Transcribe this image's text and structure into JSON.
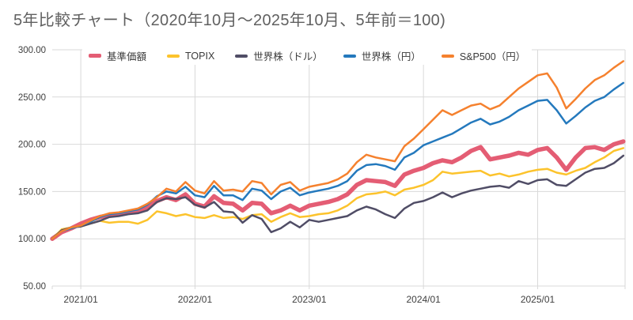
{
  "title": "5年比較チャート（2020年10月～2025年10月、5年前＝100)",
  "colors": {
    "background": "#ffffff",
    "grid": "#d9d9d9",
    "axis_text": "#3f3f3f",
    "title_text": "#606060"
  },
  "chart_data": {
    "type": "line",
    "title": "5年比較チャート（2020年10月～2025年10月、5年前＝100)",
    "x_start": "2020/10",
    "x_end": "2025/10",
    "x_frequency": "monthly",
    "base_index": 100,
    "ylim": [
      50,
      300
    ],
    "grid": true,
    "legend_position": "top",
    "y_tick_labels": [
      "300.00",
      "250.00",
      "200.00",
      "150.00",
      "100.00",
      "50.00"
    ],
    "y_ticks": [
      300,
      250,
      200,
      150,
      100,
      50
    ],
    "x_tick_labels": [
      "2021/01",
      "2022/01",
      "2023/01",
      "2024/01",
      "2025/01"
    ],
    "x_tick_month_indices": [
      3,
      15,
      27,
      39,
      51
    ],
    "series": [
      {
        "name": "基準価額",
        "color": "#e45d74",
        "width": 5.5,
        "values": [
          100,
          107,
          111,
          116,
          120,
          123,
          125,
          126,
          128,
          129,
          133,
          140,
          144,
          141,
          147,
          137,
          134,
          145,
          138,
          137,
          130,
          138,
          137,
          127,
          130,
          135,
          130,
          135,
          137,
          139,
          142,
          147,
          157,
          162,
          161,
          160,
          156,
          168,
          172,
          175,
          180,
          183,
          181,
          186,
          193,
          197,
          184,
          186,
          188,
          191,
          189,
          194,
          196,
          186,
          173,
          186,
          196,
          197,
          194,
          200,
          203
        ]
      },
      {
        "name": "TOPIX",
        "color": "#fcc32c",
        "width": 2.5,
        "values": [
          100,
          110,
          112,
          113,
          116,
          119,
          117,
          118,
          118,
          116,
          120,
          129,
          127,
          124,
          126,
          123,
          122,
          125,
          122,
          123,
          121,
          125,
          126,
          118,
          123,
          127,
          123,
          124,
          126,
          127,
          130,
          135,
          143,
          147,
          148,
          150,
          146,
          152,
          154,
          157,
          162,
          171,
          169,
          170,
          171,
          172,
          167,
          169,
          166,
          168,
          171,
          173,
          174,
          170,
          168,
          172,
          175,
          181,
          186,
          193,
          196
        ]
      },
      {
        "name": "世界株（ドル）",
        "color": "#504d66",
        "width": 2.5,
        "values": [
          100,
          109,
          112,
          113,
          116,
          119,
          123,
          124,
          126,
          127,
          130,
          139,
          143,
          142,
          144,
          136,
          133,
          139,
          129,
          128,
          117,
          125,
          121,
          107,
          111,
          118,
          112,
          120,
          118,
          120,
          122,
          124,
          130,
          134,
          131,
          126,
          122,
          132,
          138,
          140,
          144,
          149,
          144,
          148,
          151,
          153,
          155,
          156,
          154,
          161,
          158,
          162,
          163,
          157,
          156,
          163,
          170,
          174,
          175,
          180,
          188
        ]
      },
      {
        "name": "世界株（円）",
        "color": "#2479bd",
        "width": 2.5,
        "values": [
          100,
          108,
          111,
          114,
          118,
          123,
          126,
          127,
          129,
          131,
          136,
          145,
          150,
          148,
          155,
          146,
          144,
          156,
          146,
          146,
          141,
          153,
          151,
          142,
          150,
          154,
          146,
          149,
          151,
          153,
          156,
          161,
          172,
          178,
          179,
          177,
          173,
          186,
          191,
          199,
          203,
          207,
          211,
          217,
          223,
          227,
          221,
          224,
          229,
          236,
          241,
          246,
          247,
          236,
          222,
          230,
          239,
          246,
          250,
          258,
          265
        ]
      },
      {
        "name": "S&P500（円）",
        "color": "#f5812e",
        "width": 2.5,
        "values": [
          100,
          108,
          112,
          114,
          119,
          124,
          127,
          128,
          130,
          132,
          137,
          144,
          153,
          150,
          160,
          151,
          148,
          161,
          151,
          152,
          150,
          161,
          159,
          147,
          157,
          160,
          151,
          155,
          157,
          159,
          163,
          169,
          181,
          189,
          186,
          184,
          182,
          198,
          206,
          216,
          226,
          236,
          231,
          236,
          241,
          243,
          237,
          241,
          250,
          259,
          266,
          273,
          275,
          260,
          238,
          248,
          259,
          268,
          273,
          281,
          288
        ]
      }
    ]
  }
}
